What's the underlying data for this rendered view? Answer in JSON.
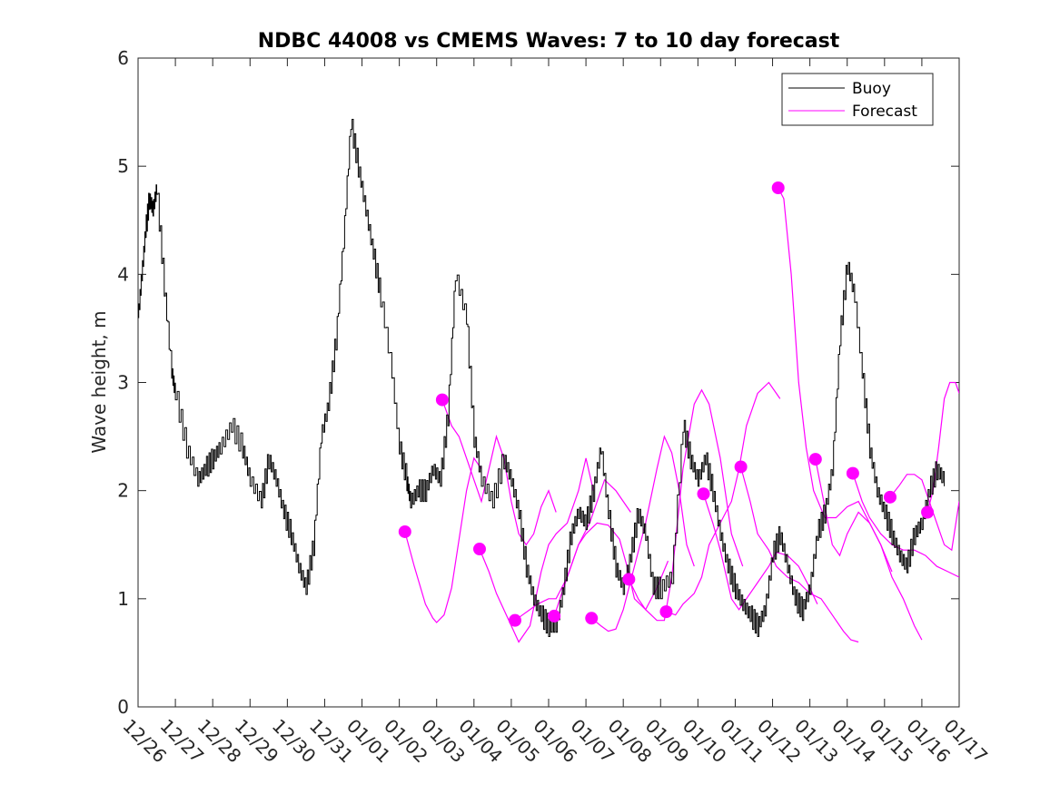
{
  "chart_data": {
    "type": "line",
    "title": "NDBC 44008 vs CMEMS Waves: 7 to 10 day forecast",
    "xlabel": "",
    "ylabel": "Wave height, m",
    "xlim": [
      0,
      22
    ],
    "ylim": [
      0,
      6
    ],
    "yticks": [
      0,
      1,
      2,
      3,
      4,
      5,
      6
    ],
    "x_tick_labels": [
      "12/26",
      "12/27",
      "12/28",
      "12/29",
      "12/30",
      "12/31",
      "01/01",
      "01/02",
      "01/03",
      "01/04",
      "01/05",
      "01/06",
      "01/07",
      "01/08",
      "01/09",
      "01/10",
      "01/11",
      "01/12",
      "01/13",
      "01/14",
      "01/15",
      "01/16",
      "01/17"
    ],
    "legend": {
      "position": "top-right",
      "entries": [
        "Buoy",
        "Forecast"
      ]
    },
    "colors": {
      "buoy": "#000000",
      "forecast": "#ff00ff",
      "axes": "#262626"
    },
    "series": [
      {
        "name": "Buoy",
        "x": [
          0.0,
          0.1,
          0.2,
          0.3,
          0.4,
          0.5,
          0.7,
          0.9,
          1.0,
          1.3,
          1.6,
          1.8,
          2.0,
          2.2,
          2.5,
          2.8,
          3.0,
          3.3,
          3.5,
          3.7,
          3.9,
          4.1,
          4.3,
          4.5,
          4.7,
          4.9,
          5.1,
          5.3,
          5.5,
          5.7,
          5.9,
          6.1,
          6.3,
          6.5,
          6.8,
          7.0,
          7.2,
          7.3,
          7.5,
          7.7,
          7.9,
          8.1,
          8.3,
          8.5,
          8.8,
          9.0,
          9.2,
          9.5,
          9.8,
          10.0,
          10.2,
          10.4,
          10.6,
          10.8,
          11.0,
          11.2,
          11.4,
          11.6,
          11.8,
          12.0,
          12.2,
          12.4,
          12.6,
          12.8,
          13.0,
          13.2,
          13.4,
          13.6,
          13.8,
          14.0,
          14.3,
          14.6,
          14.8,
          15.0,
          15.2,
          15.4,
          15.6,
          15.8,
          16.0,
          16.2,
          16.4,
          16.6,
          16.8,
          17.0,
          17.2,
          17.4,
          17.6,
          17.8,
          18.0,
          18.2,
          18.4,
          18.6,
          18.8,
          19.0,
          19.2,
          19.4,
          19.6,
          19.8,
          20.0,
          20.2,
          20.4,
          20.6,
          20.8,
          21.0,
          21.2,
          21.4,
          21.6
        ],
        "values": [
          3.6,
          4.0,
          4.4,
          4.7,
          4.6,
          4.8,
          3.9,
          3.1,
          2.9,
          2.4,
          2.1,
          2.2,
          2.3,
          2.4,
          2.6,
          2.4,
          2.1,
          1.9,
          2.3,
          2.1,
          1.8,
          1.6,
          1.3,
          1.1,
          1.5,
          2.5,
          2.8,
          3.4,
          4.3,
          5.4,
          5.0,
          4.6,
          4.2,
          3.8,
          3.1,
          2.4,
          2.1,
          1.9,
          2.0,
          2.0,
          2.2,
          2.1,
          2.7,
          4.0,
          3.6,
          2.5,
          2.1,
          1.9,
          2.3,
          2.1,
          1.8,
          1.3,
          1.0,
          0.85,
          0.75,
          0.75,
          1.1,
          1.6,
          1.8,
          1.7,
          2.0,
          2.4,
          1.8,
          1.3,
          1.1,
          1.4,
          1.8,
          1.6,
          1.1,
          1.1,
          1.2,
          2.6,
          2.3,
          2.1,
          2.3,
          2.0,
          1.6,
          1.3,
          1.1,
          0.95,
          0.85,
          0.75,
          0.9,
          1.4,
          1.6,
          1.3,
          1.0,
          0.9,
          1.1,
          1.6,
          1.8,
          2.2,
          3.4,
          4.1,
          3.8,
          3.1,
          2.4,
          2.0,
          1.8,
          1.6,
          1.4,
          1.3,
          1.6,
          1.7,
          2.0,
          2.2,
          2.1
        ]
      },
      {
        "name": "Forecast",
        "segments": [
          {
            "x": [
              7.15,
              7.4,
              7.7,
              7.9,
              8.0,
              8.2,
              8.4,
              8.6,
              8.8,
              9.0,
              9.2
            ],
            "values": [
              1.62,
              1.3,
              0.95,
              0.82,
              0.78,
              0.85,
              1.1,
              1.55,
              2.0,
              2.3,
              2.2
            ]
          },
          {
            "x": [
              8.15,
              8.4,
              8.6,
              8.8,
              9.0,
              9.2,
              9.4,
              9.6,
              9.8,
              10.0,
              10.2,
              10.4,
              10.6,
              10.8,
              11.0,
              11.2
            ],
            "values": [
              2.84,
              2.6,
              2.5,
              2.3,
              2.1,
              1.9,
              2.2,
              2.5,
              2.3,
              1.9,
              1.6,
              1.5,
              1.6,
              1.85,
              2.0,
              1.8
            ]
          },
          {
            "x": [
              9.15,
              9.4,
              9.6,
              9.8,
              10.0,
              10.2,
              10.5,
              10.8,
              11.0,
              11.2,
              11.5,
              11.8,
              12.0,
              12.2
            ],
            "values": [
              1.46,
              1.25,
              1.05,
              0.9,
              0.75,
              0.6,
              0.75,
              1.25,
              1.5,
              1.6,
              1.7,
              2.0,
              2.3,
              2.0
            ]
          },
          {
            "x": [
              10.1,
              10.3,
              10.5,
              10.7,
              11.0,
              11.2,
              11.5,
              11.8,
              12.1,
              12.5,
              12.8,
              13.0,
              13.2
            ],
            "values": [
              0.8,
              0.85,
              0.9,
              0.95,
              1.0,
              1.0,
              1.2,
              1.5,
              1.7,
              2.1,
              2.0,
              1.9,
              1.8
            ]
          },
          {
            "x": [
              11.15,
              11.4,
              11.6,
              11.8,
              12.0,
              12.3,
              12.6,
              12.9,
              13.1,
              13.3,
              13.6,
              13.9,
              14.2
            ],
            "values": [
              0.84,
              1.1,
              1.3,
              1.5,
              1.6,
              1.7,
              1.68,
              1.55,
              1.3,
              1.0,
              0.9,
              1.1,
              1.35
            ]
          },
          {
            "x": [
              12.15,
              12.4,
              12.6,
              12.8,
              13.0,
              13.3,
              13.6,
              13.9,
              14.1,
              14.3,
              14.5,
              14.7,
              14.9
            ],
            "values": [
              0.82,
              0.75,
              0.7,
              0.72,
              0.9,
              1.3,
              1.7,
              2.2,
              2.5,
              2.35,
              2.0,
              1.5,
              1.3
            ]
          },
          {
            "x": [
              13.15,
              13.4,
              13.6,
              13.9,
              14.1,
              14.3,
              14.6,
              14.9,
              15.1,
              15.3,
              15.6,
              15.9,
              16.2
            ],
            "values": [
              1.18,
              1.0,
              0.9,
              0.8,
              0.8,
              1.2,
              2.2,
              2.8,
              2.93,
              2.8,
              2.3,
              1.6,
              1.3
            ]
          },
          {
            "x": [
              14.15,
              14.4,
              14.6,
              14.9,
              15.1,
              15.3,
              15.6,
              15.9,
              16.1,
              16.3,
              16.6,
              16.9,
              17.2
            ],
            "values": [
              0.88,
              0.85,
              0.95,
              1.05,
              1.2,
              1.5,
              1.7,
              1.9,
              2.2,
              2.6,
              2.9,
              3.0,
              2.85
            ]
          },
          {
            "x": [
              15.15,
              15.4,
              15.6,
              15.9,
              16.1,
              16.3,
              16.6,
              16.9,
              17.1,
              17.4,
              17.7,
              18.0,
              18.2
            ],
            "values": [
              1.97,
              1.7,
              1.45,
              1.0,
              0.9,
              1.0,
              1.15,
              1.3,
              1.43,
              1.4,
              1.3,
              1.1,
              0.95
            ]
          },
          {
            "x": [
              16.15,
              16.4,
              16.6,
              16.9,
              17.1,
              17.4,
              17.7,
              18.0,
              18.3,
              18.6,
              18.9,
              19.1,
              19.3
            ],
            "values": [
              2.22,
              1.9,
              1.6,
              1.45,
              1.3,
              1.2,
              1.15,
              1.05,
              1.0,
              0.85,
              0.7,
              0.62,
              0.6
            ]
          },
          {
            "x": [
              17.15,
              17.3,
              17.5,
              17.7,
              17.9,
              18.1,
              18.4,
              18.7,
              19.0,
              19.3,
              19.6,
              19.9,
              20.2
            ],
            "values": [
              4.8,
              4.7,
              4.0,
              3.0,
              2.4,
              2.0,
              1.75,
              1.75,
              1.85,
              1.9,
              1.7,
              1.5,
              1.25
            ]
          },
          {
            "x": [
              18.15,
              18.4,
              18.6,
              18.8,
              19.0,
              19.3,
              19.6,
              19.9,
              20.2,
              20.5,
              20.8,
              21.0
            ],
            "values": [
              2.29,
              1.85,
              1.5,
              1.4,
              1.6,
              1.8,
              1.7,
              1.5,
              1.2,
              1.0,
              0.75,
              0.62
            ]
          },
          {
            "x": [
              19.15,
              19.4,
              19.6,
              19.9,
              20.2,
              20.5,
              20.8,
              21.1,
              21.4,
              21.7,
              22.0
            ],
            "values": [
              2.16,
              1.9,
              1.75,
              1.6,
              1.5,
              1.45,
              1.45,
              1.4,
              1.3,
              1.25,
              1.2
            ]
          },
          {
            "x": [
              20.15,
              20.4,
              20.6,
              20.8,
              21.0,
              21.2,
              21.4,
              21.6,
              21.8,
              22.0
            ],
            "values": [
              1.94,
              2.05,
              2.15,
              2.15,
              2.1,
              1.9,
              1.7,
              1.5,
              1.45,
              1.9
            ]
          },
          {
            "x": [
              21.15,
              21.3,
              21.45,
              21.6,
              21.75,
              21.9,
              22.0
            ],
            "values": [
              1.8,
              2.0,
              2.4,
              2.85,
              3.0,
              3.0,
              2.9
            ]
          }
        ]
      }
    ]
  }
}
